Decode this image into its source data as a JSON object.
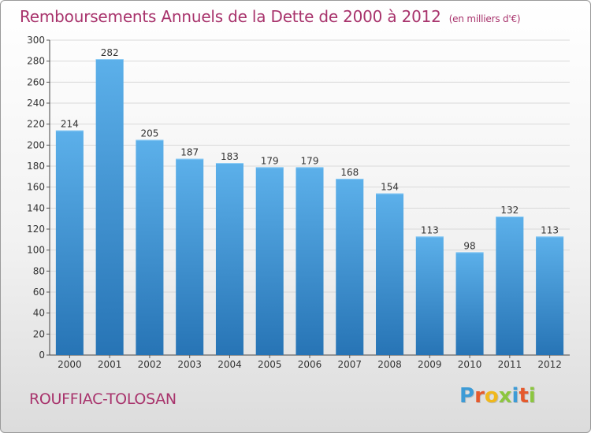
{
  "title": "Remboursements Annuels de la Dette de 2000 à 2012",
  "subtitle": "(en milliers d'€)",
  "commune": "ROUFFIAC-TOLOSAN",
  "logo": {
    "letters": [
      "P",
      "r",
      "o",
      "x",
      "i",
      "t",
      "i"
    ],
    "colors": [
      "#3d9bd6",
      "#e5592c",
      "#f0b81c",
      "#8cc63f",
      "#3d9bd6",
      "#e5592c",
      "#8cc63f"
    ]
  },
  "colors": {
    "title": "#a8336c",
    "bar_top": "#5cb0ea",
    "bar_bottom": "#2774b5",
    "grid": "#d9d9d9"
  },
  "chart_data": {
    "type": "bar",
    "categories": [
      "2000",
      "2001",
      "2002",
      "2003",
      "2004",
      "2005",
      "2006",
      "2007",
      "2008",
      "2009",
      "2010",
      "2011",
      "2012"
    ],
    "values": [
      214,
      282,
      205,
      187,
      183,
      179,
      179,
      168,
      154,
      113,
      98,
      132,
      113
    ],
    "data_labels": [
      "214",
      "282",
      "205",
      "187",
      "183",
      "179",
      "179",
      "168",
      "154",
      "113",
      "98",
      "132",
      "113"
    ],
    "y_ticks": [
      "0",
      "20",
      "40",
      "60",
      "80",
      "100",
      "120",
      "140",
      "160",
      "180",
      "200",
      "220",
      "240",
      "260",
      "280",
      "300"
    ],
    "ylim": [
      0,
      300
    ],
    "grid": true,
    "legend": "none"
  }
}
